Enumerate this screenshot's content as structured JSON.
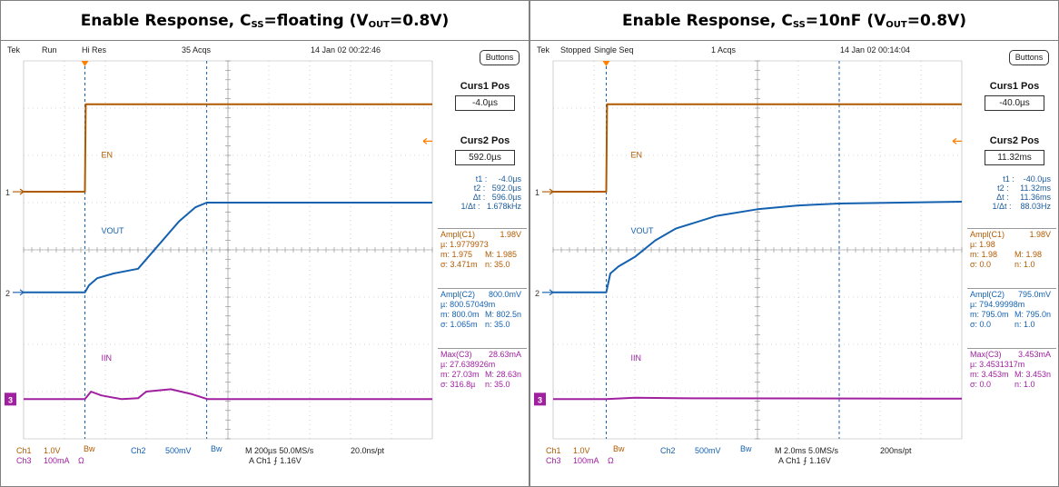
{
  "panels": [
    {
      "title_main": "Enable Response, C",
      "title_sub1": "SS",
      "title_mid": "=floating (V",
      "title_sub2": "OUT",
      "title_end": "=0.8V)",
      "status": {
        "brand": "Tek",
        "state": "Run",
        "mode": "Hi Res",
        "acqs": "35 Acqs",
        "date": "14 Jan 02 00:22:46"
      },
      "buttons_label": "Buttons",
      "curs1_title": "Curs1 Pos",
      "curs1_value": "-4.0µs",
      "curs2_title": "Curs2 Pos",
      "curs2_value": "592.0µs",
      "cursor_readout": [
        "t1 :     -4.0µs",
        "t2 :   592.0µs",
        "Δt :   596.0µs",
        "1/Δt :   1.678kHz"
      ],
      "meas1": {
        "title": "Ampl(C1)",
        "value": "1.98V",
        "mean": "µ: 1.9779973",
        "min": "m: 1.975",
        "max": "M: 1.985",
        "sigma": "σ: 3.471m",
        "n": "n: 35.0"
      },
      "meas2": {
        "title": "Ampl(C2)",
        "value": "800.0mV",
        "mean": "µ: 800.57049m",
        "min": "m: 800.0m",
        "max": "M: 802.5n",
        "sigma": "σ: 1.065m",
        "n": "n: 35.0"
      },
      "meas3": {
        "title": "Max(C3)",
        "value": "28.63mA",
        "mean": "µ: 27.638926m",
        "min": "m: 27.03m",
        "max": "M: 28.63n",
        "sigma": "σ: 316.8µ",
        "n": "n: 35.0"
      },
      "trace_labels": {
        "en": "EN",
        "vout": "VOUT",
        "iin": "IIN"
      },
      "markers": {
        "m1": "1",
        "m2": "2",
        "m3": "3"
      },
      "footer": {
        "ch1": "Ch1",
        "ch1_scale": "1.0V",
        "bw1": "Bw",
        "ch2": "Ch2",
        "ch2_scale": "500mV",
        "bw2": "Bw",
        "ch3": "Ch3",
        "ch3_scale": "100mA",
        "ohm": "Ω",
        "timebase": "M 200µs 50.0MS/s",
        "trigger": "A  Ch1  ⨍  1.16V",
        "res": "20.0ns/pt"
      }
    },
    {
      "title_main": "Enable Response, C",
      "title_sub1": "SS",
      "title_mid": "=10nF (V",
      "title_sub2": "OUT",
      "title_end": "=0.8V)",
      "status": {
        "brand": "Tek",
        "state": "Stopped",
        "mode": "Single Seq",
        "acqs": "1 Acqs",
        "date": "14 Jan 02 00:14:04"
      },
      "buttons_label": "Buttons",
      "curs1_title": "Curs1 Pos",
      "curs1_value": "-40.0µs",
      "curs2_title": "Curs2 Pos",
      "curs2_value": "11.32ms",
      "cursor_readout": [
        "t1 :    -40.0µs",
        "t2 :     11.32ms",
        "Δt :     11.36ms",
        "1/Δt :    88.03Hz"
      ],
      "meas1": {
        "title": "Ampl(C1)",
        "value": "1.98V",
        "mean": "µ: 1.98",
        "min": "m: 1.98",
        "max": "M: 1.98",
        "sigma": "σ: 0.0",
        "n": "n: 1.0"
      },
      "meas2": {
        "title": "Ampl(C2)",
        "value": "795.0mV",
        "mean": "µ: 794.99998m",
        "min": "m: 795.0m",
        "max": "M: 795.0n",
        "sigma": "σ: 0.0",
        "n": "n: 1.0"
      },
      "meas3": {
        "title": "Max(C3)",
        "value": "3.453mA",
        "mean": "µ: 3.4531317m",
        "min": "m: 3.453m",
        "max": "M: 3.453n",
        "sigma": "σ: 0.0",
        "n": "n: 1.0"
      },
      "trace_labels": {
        "en": "EN",
        "vout": "VOUT",
        "iin": "IIN"
      },
      "markers": {
        "m1": "1",
        "m2": "2",
        "m3": "3"
      },
      "footer": {
        "ch1": "Ch1",
        "ch1_scale": "1.0V",
        "bw1": "Bw",
        "ch2": "Ch2",
        "ch2_scale": "500mV",
        "bw2": "Bw",
        "ch3": "Ch3",
        "ch3_scale": "100mA",
        "ohm": "Ω",
        "timebase": "M 2.0ms 5.0MS/s",
        "trigger": "A  Ch1  ⨍  1.16V",
        "res": "200ns/pt"
      }
    }
  ],
  "colors": {
    "ch1": "#b05a00",
    "ch2": "#1461b0",
    "ch3": "#a020a0",
    "trigger": "#ff8000",
    "grid": "#b0b0b0"
  },
  "chart_data": [
    {
      "type": "line",
      "x_unit": "div (200µs/div)",
      "xlim": [
        0,
        10
      ],
      "ylim": [
        -4,
        4
      ],
      "cursors_div": [
        1.5,
        4.48
      ],
      "series": [
        {
          "name": "EN",
          "points": [
            [
              0,
              1.23
            ],
            [
              1.5,
              1.23
            ],
            [
              1.52,
              3.08
            ],
            [
              10,
              3.08
            ]
          ]
        },
        {
          "name": "VOUT",
          "points": [
            [
              0,
              -0.9
            ],
            [
              1.5,
              -0.9
            ],
            [
              1.6,
              -0.75
            ],
            [
              1.8,
              -0.6
            ],
            [
              2.2,
              -0.5
            ],
            [
              2.8,
              -0.4
            ],
            [
              3.3,
              0.1
            ],
            [
              3.8,
              0.6
            ],
            [
              4.2,
              0.9
            ],
            [
              4.48,
              1.0
            ],
            [
              10,
              1.0
            ]
          ]
        },
        {
          "name": "IIN",
          "points": [
            [
              0,
              -3.16
            ],
            [
              1.5,
              -3.16
            ],
            [
              1.65,
              -3.0
            ],
            [
              1.9,
              -3.08
            ],
            [
              2.4,
              -3.16
            ],
            [
              2.8,
              -3.14
            ],
            [
              3.0,
              -3.0
            ],
            [
              3.6,
              -2.95
            ],
            [
              4.1,
              -3.05
            ],
            [
              4.5,
              -3.16
            ],
            [
              10,
              -3.16
            ]
          ]
        }
      ]
    },
    {
      "type": "line",
      "x_unit": "div (2.0ms/div)",
      "xlim": [
        0,
        10
      ],
      "ylim": [
        -4,
        4
      ],
      "cursors_div": [
        1.3,
        7.0
      ],
      "series": [
        {
          "name": "EN",
          "points": [
            [
              0,
              1.23
            ],
            [
              1.3,
              1.23
            ],
            [
              1.32,
              3.08
            ],
            [
              10,
              3.08
            ]
          ]
        },
        {
          "name": "VOUT",
          "points": [
            [
              0,
              -0.9
            ],
            [
              1.3,
              -0.9
            ],
            [
              1.4,
              -0.5
            ],
            [
              1.6,
              -0.35
            ],
            [
              2.0,
              -0.15
            ],
            [
              2.5,
              0.2
            ],
            [
              3.0,
              0.45
            ],
            [
              4.0,
              0.72
            ],
            [
              5.0,
              0.86
            ],
            [
              6.0,
              0.94
            ],
            [
              7.0,
              0.98
            ],
            [
              8.5,
              1.0
            ],
            [
              10,
              1.02
            ]
          ]
        },
        {
          "name": "IIN",
          "points": [
            [
              0,
              -3.16
            ],
            [
              1.3,
              -3.16
            ],
            [
              2.0,
              -3.13
            ],
            [
              3.0,
              -3.14
            ],
            [
              10,
              -3.15
            ]
          ]
        }
      ]
    }
  ]
}
